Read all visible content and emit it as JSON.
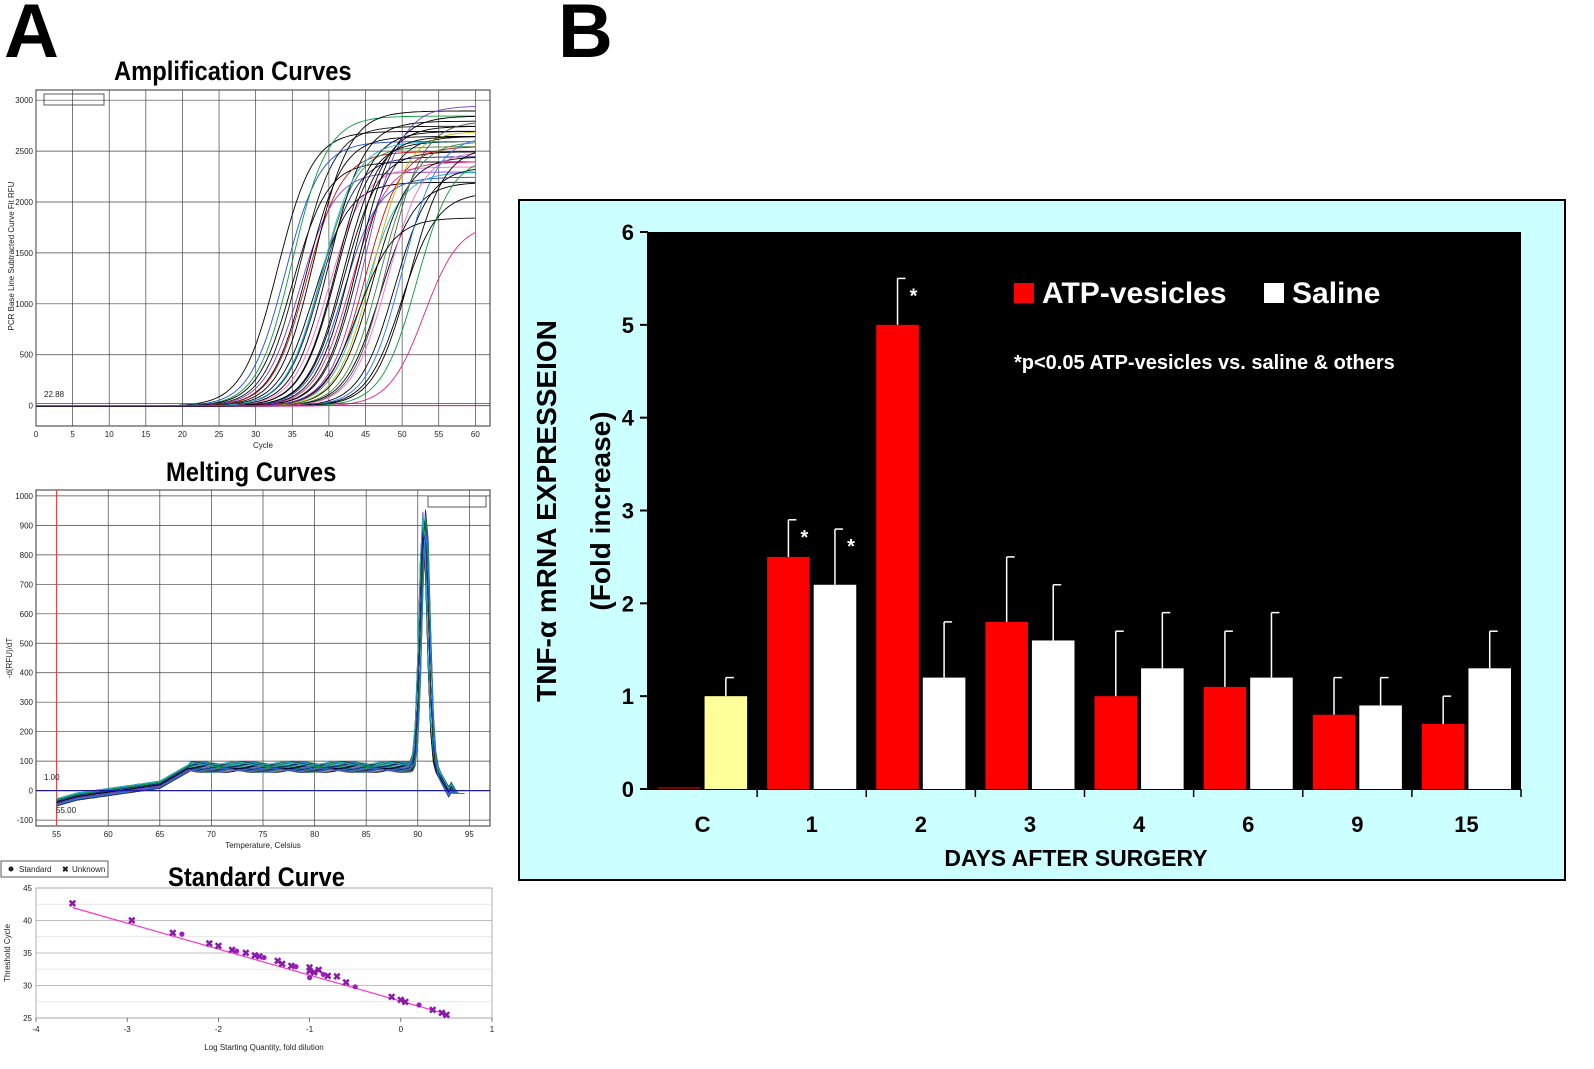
{
  "figure": {
    "panel_a_label": "A",
    "panel_b_label": "B"
  },
  "amplification": {
    "title": "Amplification Curves",
    "xlabel": "Cycle",
    "ylabel": "PCR Base Line Subtracted Curve Fit RFU",
    "xticks": [
      "0",
      "5",
      "10",
      "15",
      "20",
      "25",
      "30",
      "35",
      "40",
      "45",
      "50",
      "55",
      "60"
    ],
    "yticks": [
      "0",
      "500",
      "1000",
      "1500",
      "2000",
      "2500",
      "3000"
    ],
    "threshold_label": "22.88"
  },
  "melting": {
    "title": "Melting Curves",
    "xlabel": "Temperature, Celsius",
    "ylabel": "-d(RFU)/dT",
    "xticks": [
      "55",
      "60",
      "65",
      "70",
      "75",
      "80",
      "85",
      "90",
      "95"
    ],
    "yticks": [
      "-100",
      "0",
      "100",
      "200",
      "300",
      "400",
      "500",
      "600",
      "700",
      "800",
      "900",
      "1000"
    ],
    "threshold_label": "1.00",
    "begin_label": "55.00"
  },
  "standard": {
    "title": "Standard Curve",
    "xlabel": "Log Starting Quantity, fold dilution",
    "ylabel": "Threshold Cycle",
    "xticks": [
      "-4",
      "-3",
      "-2",
      "-1",
      "0",
      "1"
    ],
    "yticks": [
      "25",
      "30",
      "35",
      "40",
      "45"
    ],
    "legend_standard": "Standard",
    "legend_unknown": "Unknown"
  },
  "chart_data": [
    {
      "type": "bar",
      "title": "",
      "xlabel": "DAYS AFTER SURGERY",
      "ylabel_line1": "TNF-α mRNA EXPRESSEION",
      "ylabel_line2": "(Fold increase)",
      "categories": [
        "C",
        "1",
        "2",
        "3",
        "4",
        "6",
        "9",
        "15"
      ],
      "ylim": [
        0,
        6
      ],
      "yticks": [
        "0",
        "1",
        "2",
        "3",
        "4",
        "5",
        "6"
      ],
      "series": [
        {
          "name": "ATP-vesicles",
          "color": "#ff0000",
          "values": [
            0,
            2.5,
            5.0,
            1.8,
            1.0,
            1.1,
            0.8,
            0.7
          ],
          "errors": [
            0,
            0.4,
            0.5,
            0.7,
            0.7,
            0.6,
            0.4,
            0.3
          ]
        },
        {
          "name": "Saline",
          "color": "#ffffff",
          "values": [
            1.0,
            2.2,
            1.2,
            1.6,
            1.3,
            1.2,
            0.9,
            1.3
          ],
          "errors": [
            0.2,
            0.6,
            0.6,
            0.6,
            0.6,
            0.7,
            0.3,
            0.4
          ]
        }
      ],
      "control_color": "#ffff99",
      "significance_marks": [
        {
          "category": "1",
          "series": "ATP-vesicles",
          "text": "*"
        },
        {
          "category": "1",
          "series": "Saline",
          "text": "*"
        },
        {
          "category": "2",
          "series": "ATP-vesicles",
          "text": "*"
        }
      ],
      "annotation": "*p<0.05 ATP-vesicles vs. saline & others",
      "background": "#000000",
      "frame_color": "#ccffff"
    },
    {
      "type": "line",
      "title": "Amplification Curves",
      "xlabel": "Cycle",
      "ylabel": "PCR Base Line Subtracted Curve Fit RFU",
      "xlim": [
        0,
        62
      ],
      "ylim": [
        -200,
        3100
      ],
      "series_summary": "~45 sigmoidal amplification curves, Cq 30–52, plateau 1800–2950 RFU",
      "curves": [
        [
          33,
          2700
        ],
        [
          34,
          2600
        ],
        [
          35,
          2850
        ],
        [
          35,
          2400
        ],
        [
          36,
          2750
        ],
        [
          36,
          2300
        ],
        [
          37,
          2650
        ],
        [
          37,
          2500
        ],
        [
          38,
          2900
        ],
        [
          38,
          2200
        ],
        [
          39,
          2550
        ],
        [
          39,
          2450
        ],
        [
          40,
          2800
        ],
        [
          40,
          2350
        ],
        [
          41,
          2600
        ],
        [
          41,
          2700
        ],
        [
          42,
          2500
        ],
        [
          42,
          2250
        ],
        [
          43,
          2750
        ],
        [
          43,
          2400
        ],
        [
          44,
          2650
        ],
        [
          44,
          2850
        ],
        [
          45,
          2300
        ],
        [
          45,
          2550
        ],
        [
          46,
          2450
        ],
        [
          46,
          2700
        ],
        [
          47,
          2600
        ],
        [
          47,
          2200
        ],
        [
          48,
          2800
        ],
        [
          48,
          2500
        ],
        [
          49,
          2350
        ],
        [
          50,
          2650
        ],
        [
          50,
          2100
        ],
        [
          51,
          2550
        ],
        [
          52,
          2450
        ],
        [
          53,
          1800
        ],
        [
          44,
          1850
        ],
        [
          45,
          2950
        ],
        [
          39,
          2600
        ],
        [
          42,
          2650
        ]
      ]
    },
    {
      "type": "line",
      "title": "Melting Curves",
      "xlabel": "Temperature, Celsius",
      "ylabel": "-d(RFU)/dT",
      "xlim": [
        53,
        97
      ],
      "ylim": [
        -120,
        1020
      ],
      "peak_temperature": 90.5,
      "peak_height": 950
    },
    {
      "type": "scatter",
      "title": "Standard Curve",
      "xlabel": "Log Starting Quantity, fold dilution",
      "ylabel": "Threshold Cycle",
      "xlim": [
        -4,
        1
      ],
      "ylim": [
        25,
        45
      ],
      "points": [
        [
          -3.6,
          42.6
        ],
        [
          -2.95,
          40.0
        ],
        [
          -2.5,
          38.1
        ],
        [
          -2.4,
          37.9
        ],
        [
          -2.1,
          36.5
        ],
        [
          -2.0,
          36.1
        ],
        [
          -1.85,
          35.5
        ],
        [
          -1.8,
          35.3
        ],
        [
          -1.7,
          35.0
        ],
        [
          -1.6,
          34.6
        ],
        [
          -1.55,
          34.5
        ],
        [
          -1.5,
          34.3
        ],
        [
          -1.35,
          33.8
        ],
        [
          -1.3,
          33.3
        ],
        [
          -1.2,
          33.0
        ],
        [
          -1.15,
          32.9
        ],
        [
          -1.0,
          32.2
        ],
        [
          -0.95,
          32.0
        ],
        [
          -0.9,
          32.4
        ],
        [
          -0.85,
          31.7
        ],
        [
          -0.8,
          31.5
        ],
        [
          -0.7,
          31.4
        ],
        [
          -0.6,
          30.5
        ],
        [
          -0.5,
          29.8
        ],
        [
          -0.1,
          28.2
        ],
        [
          0.0,
          27.8
        ],
        [
          0.05,
          27.5
        ],
        [
          0.2,
          27.0
        ],
        [
          0.35,
          26.2
        ],
        [
          0.45,
          25.8
        ],
        [
          0.5,
          25.5
        ],
        [
          -1.0,
          31.2
        ],
        [
          -1.0,
          32.8
        ]
      ],
      "fit": {
        "slope": -4.0,
        "intercept": 27.6
      }
    }
  ]
}
